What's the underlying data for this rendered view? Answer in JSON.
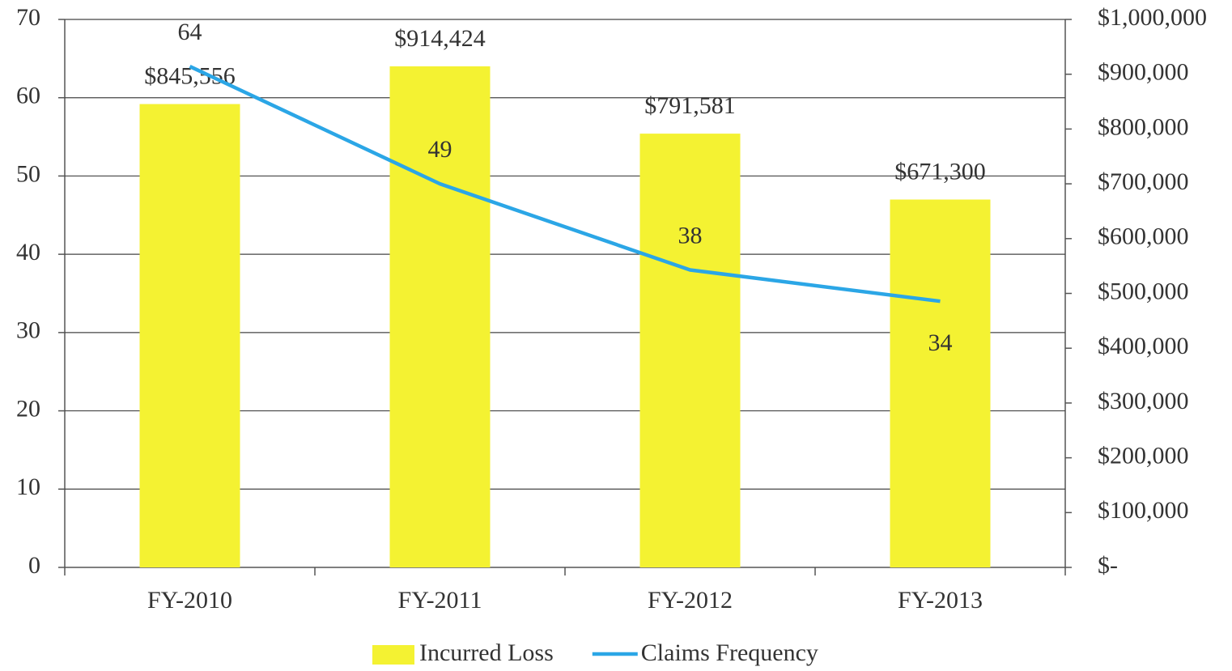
{
  "chart_data": {
    "type": "combo",
    "categories": [
      "FY-2010",
      "FY-2011",
      "FY-2012",
      "FY-2013"
    ],
    "series": [
      {
        "name": "Incurred Loss",
        "type": "bar",
        "axis": "y2",
        "color": "#f4f232",
        "values": [
          845556,
          914424,
          791581,
          671300
        ],
        "value_labels": [
          "$845,556",
          "$914,424",
          "$791,581",
          "$671,300"
        ]
      },
      {
        "name": "Claims Frequency",
        "type": "line",
        "axis": "y",
        "color": "#2ba6e6",
        "values": [
          64,
          49,
          38,
          34
        ]
      }
    ],
    "ylim": [
      0,
      70
    ],
    "yticks": [
      0,
      10,
      20,
      30,
      40,
      50,
      60,
      70
    ],
    "y2lim": [
      0,
      1000000
    ],
    "y2ticks": [
      {
        "value": 0,
        "label": "$-"
      },
      {
        "value": 100000,
        "label": "$100,000"
      },
      {
        "value": 200000,
        "label": "$200,000"
      },
      {
        "value": 300000,
        "label": "$300,000"
      },
      {
        "value": 400000,
        "label": "$400,000"
      },
      {
        "value": 500000,
        "label": "$500,000"
      },
      {
        "value": 600000,
        "label": "$600,000"
      },
      {
        "value": 700000,
        "label": "$700,000"
      },
      {
        "value": 800000,
        "label": "$800,000"
      },
      {
        "value": 900000,
        "label": "$900,000"
      },
      {
        "value": 1000000,
        "label": "$1,000,000"
      }
    ],
    "grid": true,
    "legend": "bottom"
  }
}
